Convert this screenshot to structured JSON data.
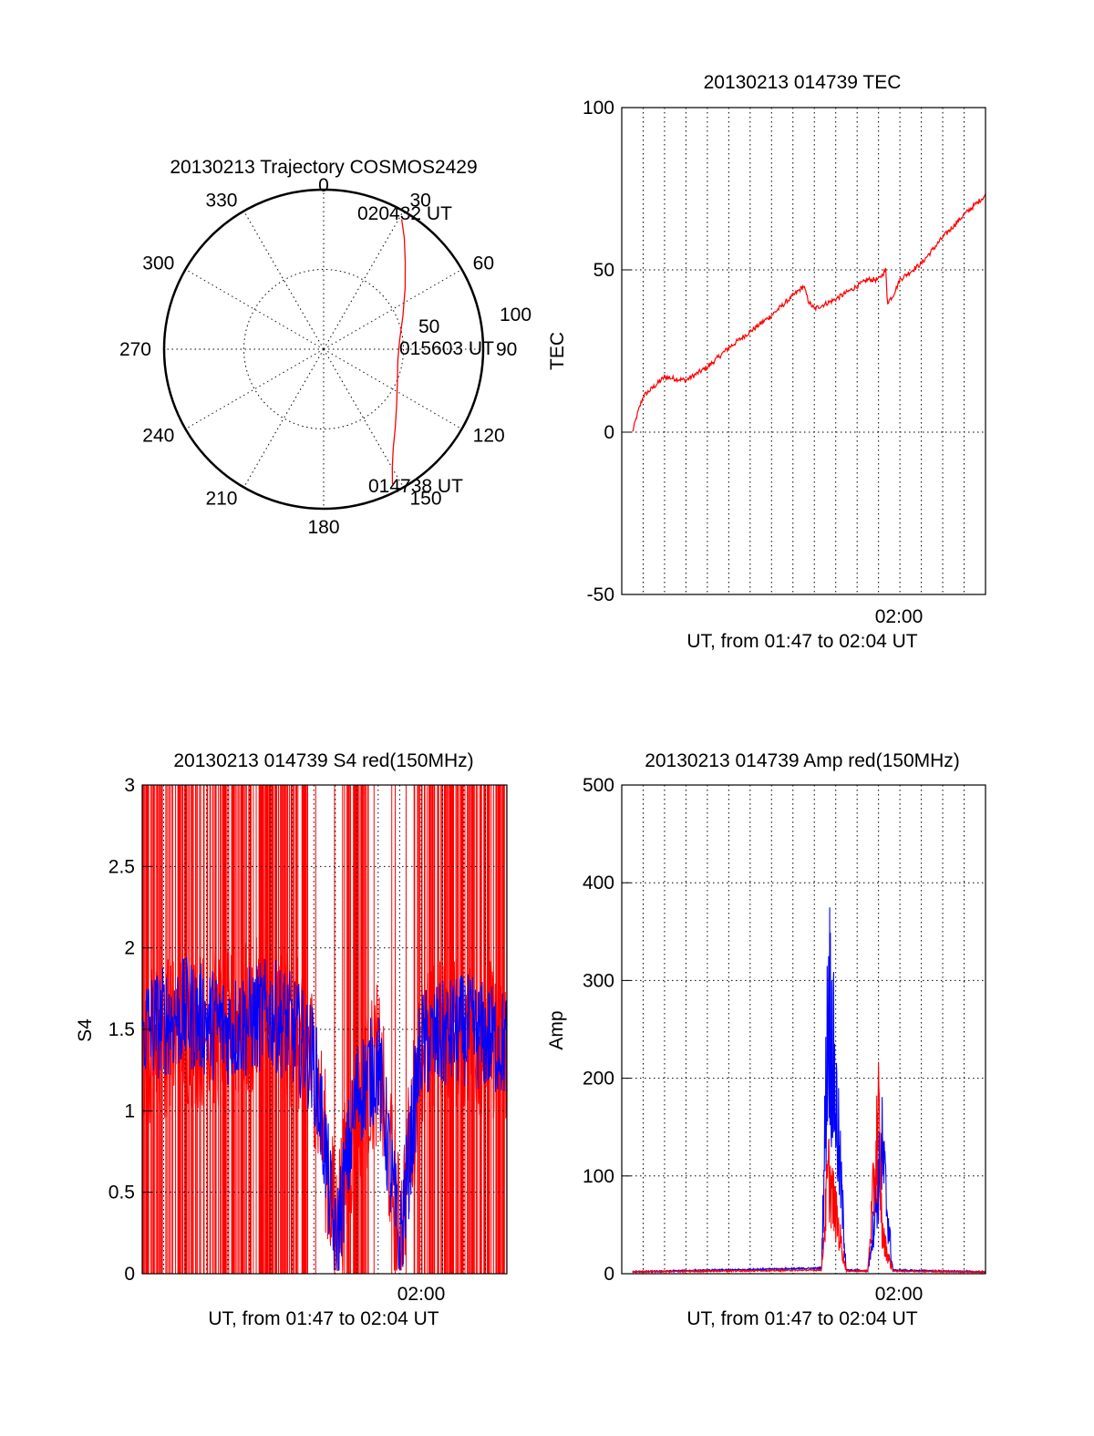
{
  "chart_data": [
    {
      "type": "polar",
      "title": "20130213 Trajectory COSMOS2429",
      "angle_ticks": [
        "0",
        "30",
        "60",
        "90",
        "120",
        "150",
        "180",
        "210",
        "240",
        "270",
        "300",
        "330"
      ],
      "radius_ticks": [
        "50",
        "100"
      ],
      "rlim": [
        0,
        100
      ],
      "grid": true,
      "annotations": [
        "020432 UT",
        "015603 UT",
        "014738 UT"
      ],
      "trajectory": {
        "azimuth": [
          153,
          150,
          145,
          138,
          128,
          115,
          98,
          83,
          67,
          53,
          43,
          36,
          31
        ],
        "radius": [
          95,
          86,
          76,
          67,
          58,
          51,
          47,
          48,
          54,
          64,
          75,
          86,
          95
        ]
      },
      "colors": {
        "trajectory": "#ff0000"
      }
    },
    {
      "type": "line",
      "title": "20130213 014739 TEC",
      "xlabel": "UT, from 01:47 to 02:04 UT",
      "ylabel": "TEC",
      "x_tick_labels": [
        "02:00"
      ],
      "y_tick_labels": [
        "100",
        "50",
        "0",
        "-50"
      ],
      "xlim": [
        "01:47",
        "02:04"
      ],
      "ylim": [
        -50,
        100
      ],
      "grid": true,
      "series": [
        {
          "color": "#ff0000",
          "x": [
            "01:47:30",
            "01:47:45",
            "01:48:00",
            "01:48:30",
            "01:49:00",
            "01:50:00",
            "01:51:00",
            "01:52:00",
            "01:53:00",
            "01:54:00",
            "01:55:00",
            "01:55:30",
            "01:55:45",
            "01:56:00",
            "01:57:00",
            "01:58:00",
            "01:58:30",
            "01:59:00",
            "01:59:20",
            "01:59:25",
            "01:59:40",
            "02:00:00",
            "02:01:00",
            "02:02:00",
            "02:03:00",
            "02:04:00"
          ],
          "values": [
            0,
            6,
            11,
            14,
            17,
            16,
            20,
            26,
            31,
            36,
            42,
            45,
            40,
            38,
            41,
            45,
            47,
            47,
            50,
            40,
            42,
            47,
            52,
            60,
            67,
            73
          ]
        }
      ]
    },
    {
      "type": "line",
      "title": "20130213 014739 S4 red(150MHz)",
      "xlabel": "UT, from 01:47 to 02:04 UT",
      "ylabel": "S4",
      "x_tick_labels": [
        "02:00"
      ],
      "y_tick_labels": [
        "3",
        "2.5",
        "2",
        "1.5",
        "1",
        "0.5",
        "0"
      ],
      "xlim": [
        "01:47",
        "02:04"
      ],
      "ylim": [
        0,
        3
      ],
      "grid": true,
      "series": [
        {
          "color": "#ff0000",
          "x": [
            "01:47",
            "01:49",
            "01:51",
            "01:53",
            "01:54",
            "01:55",
            "01:55:30",
            "01:56",
            "01:57",
            "01:58",
            "01:59",
            "02:00",
            "02:02",
            "02:04"
          ],
          "values": [
            1.4,
            1.5,
            1.5,
            1.6,
            1.5,
            1.3,
            0.8,
            0.25,
            1.0,
            1.3,
            0.2,
            1.4,
            1.5,
            1.4
          ]
        },
        {
          "color": "#0000ff",
          "x": [
            "01:47",
            "01:49",
            "01:51",
            "01:53",
            "01:54",
            "01:55",
            "01:55:30",
            "01:56",
            "01:57",
            "01:58",
            "01:59",
            "02:00",
            "02:02",
            "02:04"
          ],
          "values": [
            1.5,
            1.6,
            1.5,
            1.6,
            1.5,
            1.3,
            0.8,
            0.15,
            1.1,
            1.3,
            0.15,
            1.4,
            1.5,
            1.4
          ]
        }
      ]
    },
    {
      "type": "line",
      "title": "20130213 014739 Amp red(150MHz)",
      "xlabel": "UT, from 01:47 to 02:04 UT",
      "ylabel": "Amp",
      "x_tick_labels": [
        "02:00"
      ],
      "y_tick_labels": [
        "500",
        "400",
        "300",
        "200",
        "100",
        "0"
      ],
      "xlim": [
        "01:47",
        "02:04"
      ],
      "ylim": [
        0,
        500
      ],
      "grid": true,
      "series": [
        {
          "color": "#0000ff",
          "x": [
            "01:47",
            "01:56:20",
            "01:56:35",
            "01:56:40",
            "01:57:00",
            "01:57:30",
            "01:58:30",
            "01:59:00",
            "01:59:10",
            "01:59:40",
            "02:04"
          ],
          "values": [
            1,
            5,
            320,
            425,
            260,
            3,
            2,
            140,
            185,
            3,
            1
          ]
        },
        {
          "color": "#ff0000",
          "x": [
            "01:47",
            "01:56:20",
            "01:56:35",
            "01:56:40",
            "01:57:00",
            "01:57:30",
            "01:58:30",
            "01:59:00",
            "01:59:10",
            "01:59:40",
            "02:04"
          ],
          "values": [
            1,
            3,
            120,
            150,
            90,
            2,
            2,
            235,
            60,
            2,
            1
          ]
        }
      ]
    }
  ]
}
